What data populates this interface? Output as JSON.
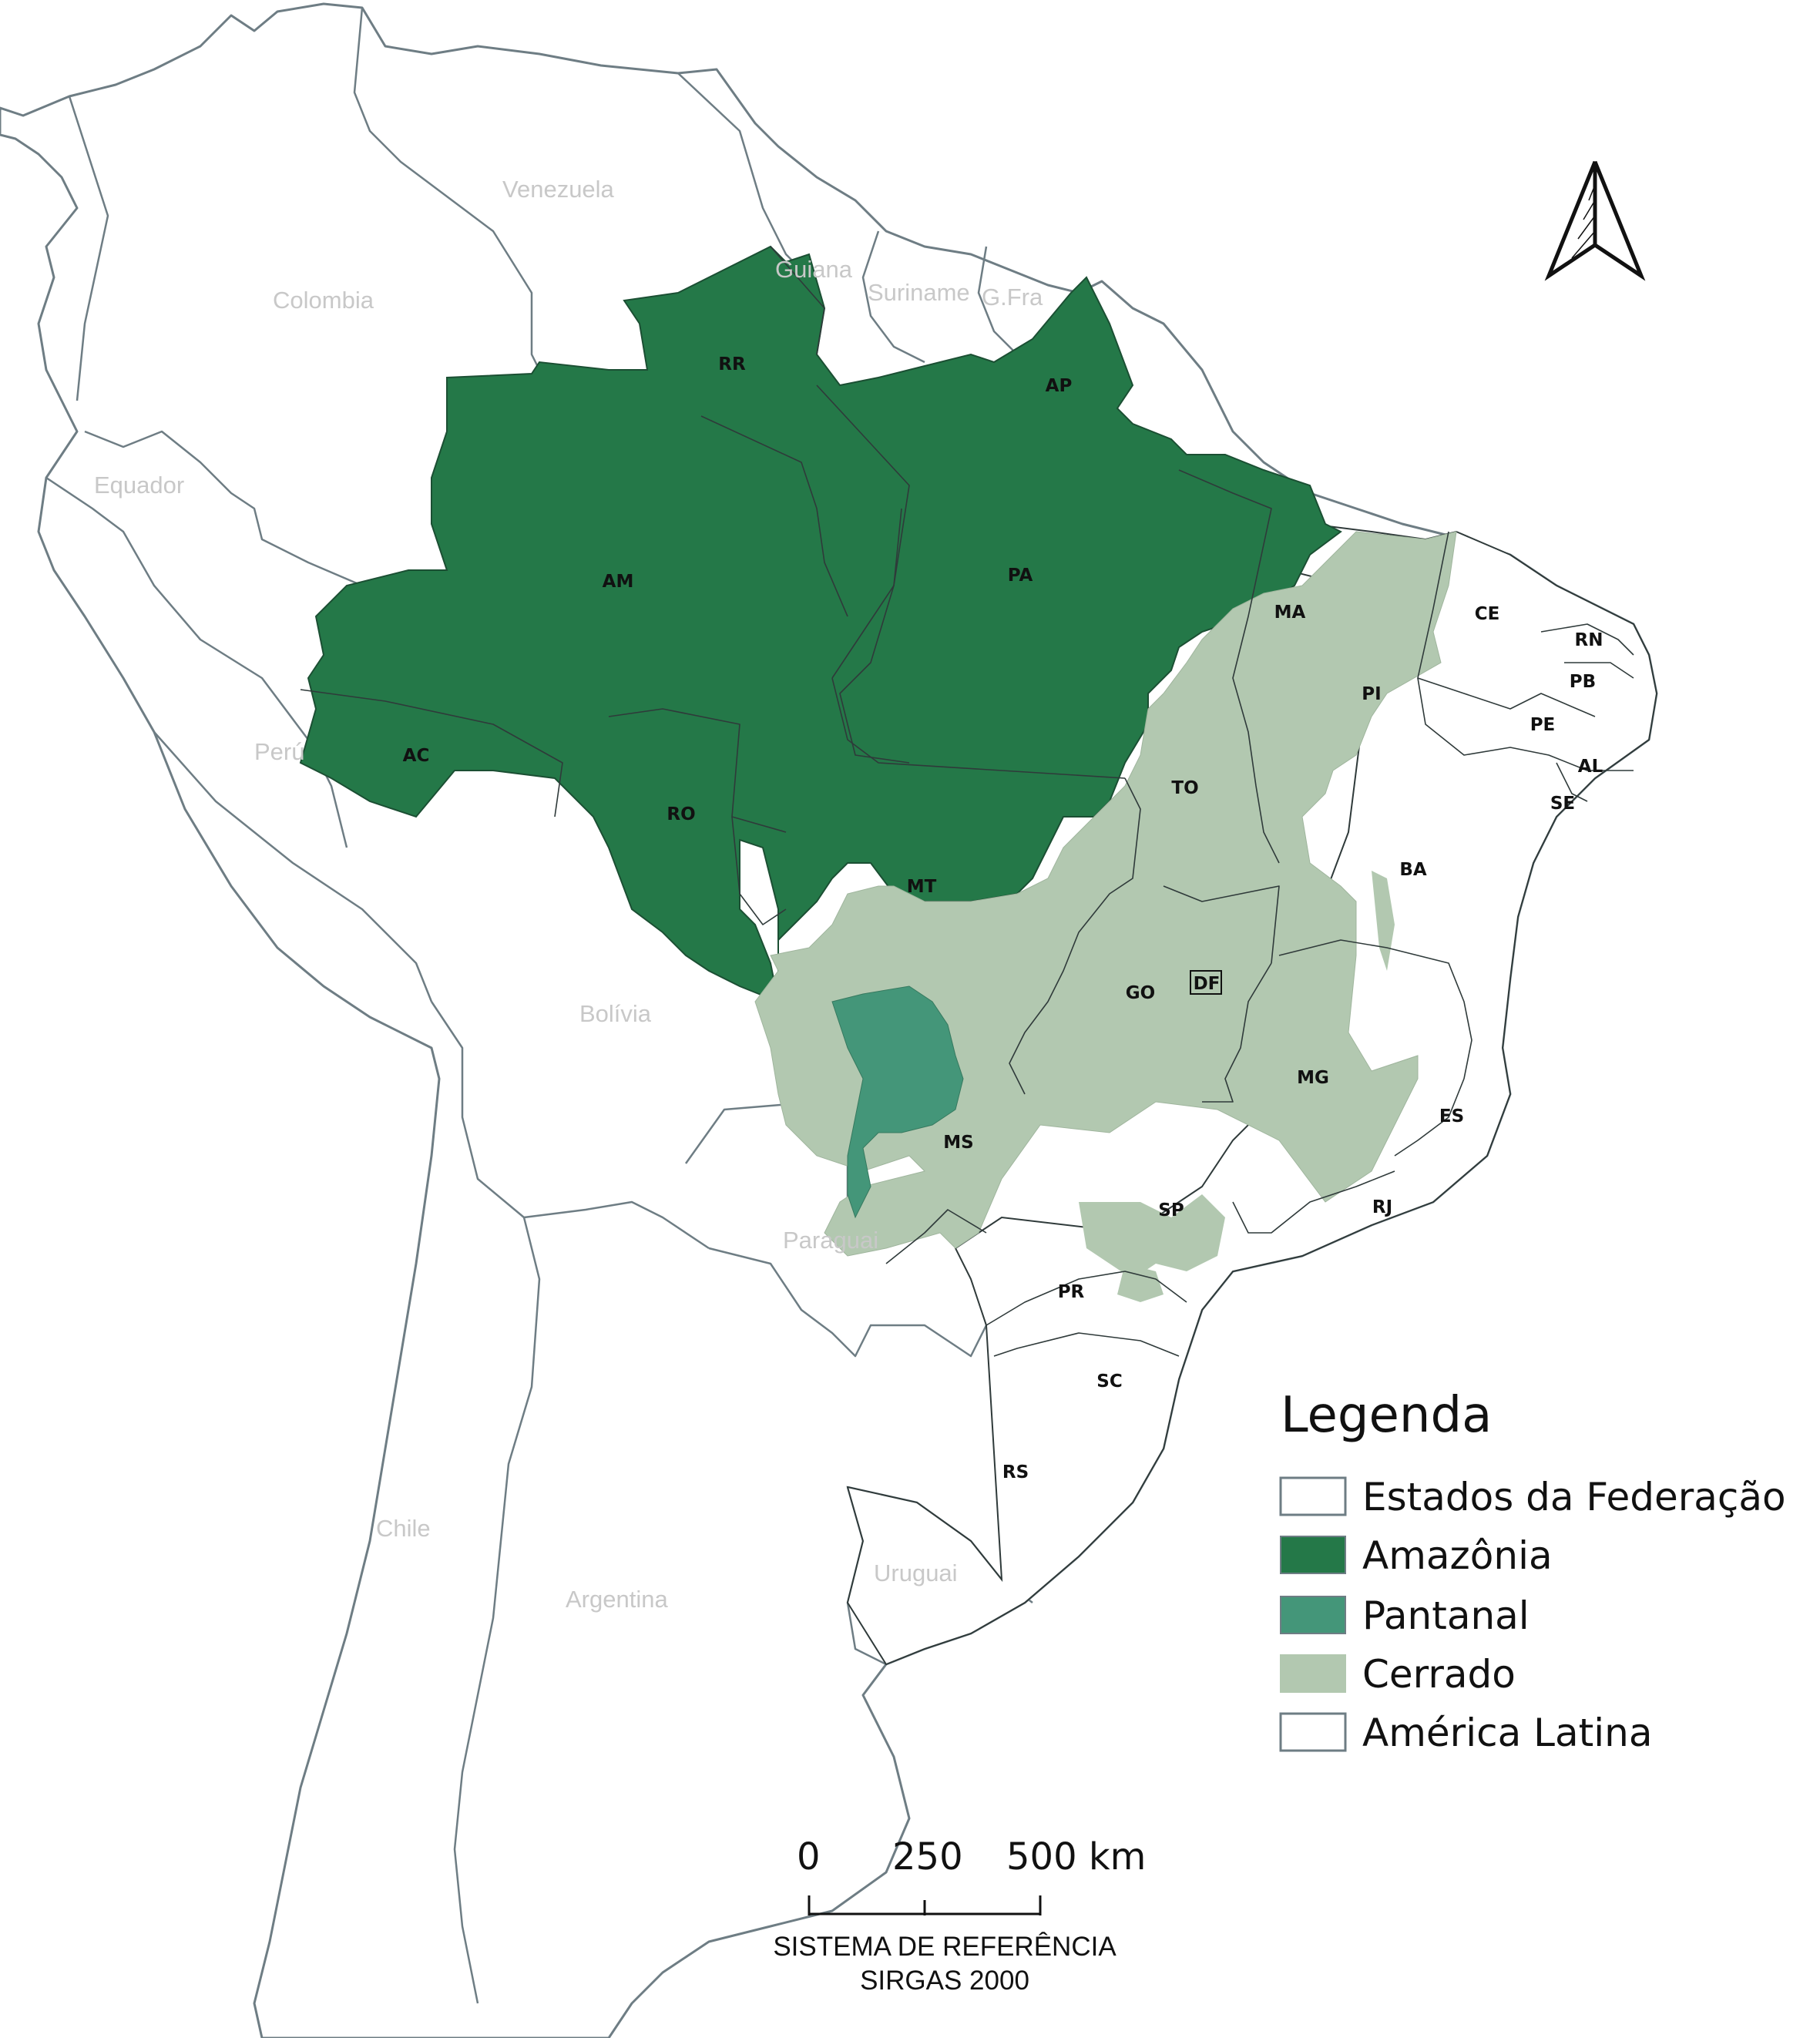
{
  "colors": {
    "estados": "#ffffff",
    "amazonia": "#247848",
    "pantanal": "#449679",
    "cerrado": "#b2c8b0",
    "america_latina": "#ffffff",
    "outline": "#6e7d84"
  },
  "countries": [
    "Venezuela",
    "Colombia",
    "Guiana",
    "Suriname",
    "G.Fra",
    "Equador",
    "Perú",
    "Bolívia",
    "Paraguai",
    "Chile",
    "Argentina",
    "Uruguai"
  ],
  "states": [
    "RR",
    "AP",
    "AM",
    "PA",
    "MA",
    "CE",
    "RN",
    "PB",
    "PE",
    "AL",
    "SE",
    "PI",
    "AC",
    "RO",
    "TO",
    "MT",
    "BA",
    "GO",
    "DF",
    "MG",
    "ES",
    "MS",
    "SP",
    "RJ",
    "PR",
    "SC",
    "RS"
  ],
  "legend": {
    "title": "Legenda",
    "items": [
      {
        "label": "Estados da Federação",
        "color": "#ffffff"
      },
      {
        "label": "Amazônia",
        "color": "#247848"
      },
      {
        "label": "Pantanal",
        "color": "#449679"
      },
      {
        "label": "Cerrado",
        "color": "#b2c8b0"
      },
      {
        "label": "América Latina",
        "color": "#ffffff"
      }
    ]
  },
  "scale_bar": {
    "ticks": [
      "0",
      "250",
      "500 km"
    ]
  },
  "crs": {
    "line1": "SISTEMA DE REFERÊNCIA",
    "line2": "SIRGAS 2000"
  },
  "north_arrow": {
    "icon": "north-arrow-icon"
  }
}
